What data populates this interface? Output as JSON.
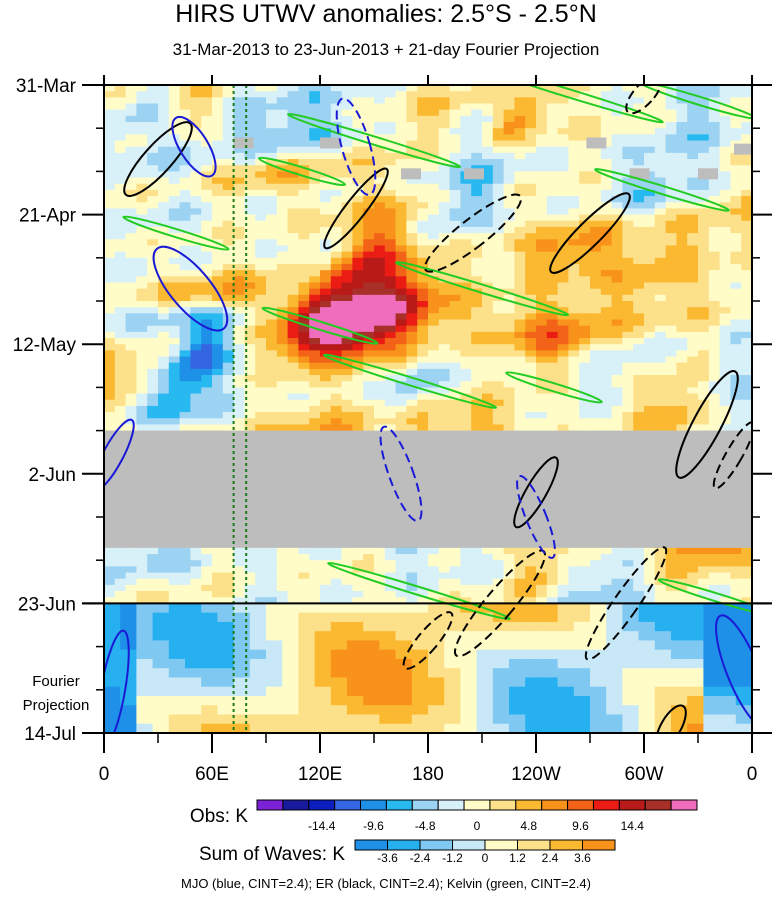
{
  "header": {
    "title": "HIRS UTWV anomalies: 2.5°S - 2.5°N",
    "subtitle": "31-Mar-2013 to 23-Jun-2013 + 21-day Fourier Projection"
  },
  "chart_data": {
    "type": "heatmap",
    "x_tick_labels": [
      "0",
      "60E",
      "120E",
      "180",
      "120W",
      "60W",
      "0"
    ],
    "x_tick_lon": [
      0,
      60,
      120,
      180,
      240,
      300,
      360
    ],
    "xlim": [
      0,
      360
    ],
    "y_tick_labels": [
      "31-Mar",
      "21-Apr",
      "12-May",
      "2-Jun",
      "23-Jun",
      "14-Jul"
    ],
    "y_tick_day": [
      0,
      21,
      42,
      63,
      84,
      105
    ],
    "ylim_days": [
      0,
      105
    ],
    "observation_end_day": 84,
    "projection_label": [
      "Fourier",
      "Projection"
    ],
    "missing_data_band_days": [
      56,
      75
    ],
    "reference_lines_lon": [
      72,
      79
    ],
    "reference_line_color": "#1a7a1a",
    "colorbar_obs": {
      "title": "Obs: K",
      "tick_labels": [
        "-14.4",
        "-9.6",
        "-4.8",
        "0",
        "4.8",
        "9.6",
        "14.4"
      ],
      "colors": [
        "#7b22d6",
        "#1a1a9e",
        "#0b1fc0",
        "#3366e0",
        "#1e90e8",
        "#27b9f0",
        "#9cd2f2",
        "#d8f0f8",
        "#fffcc8",
        "#fde18a",
        "#fbb932",
        "#f8921a",
        "#f26318",
        "#ea1c14",
        "#b81a18",
        "#a83028",
        "#f06cbc"
      ]
    },
    "colorbar_waves": {
      "title": "Sum of Waves: K",
      "tick_labels": [
        "-3.6",
        "-2.4",
        "-1.2",
        "0",
        "1.2",
        "2.4",
        "3.6"
      ],
      "colors": [
        "#1e90e8",
        "#27b0f0",
        "#7fc8f2",
        "#c8e8f8",
        "#fffcc8",
        "#fde18a",
        "#fbb932",
        "#f8921a"
      ]
    },
    "overlays": [
      {
        "name": "MJO",
        "color": "#1a1ad6"
      },
      {
        "name": "ER",
        "color": "#000000"
      },
      {
        "name": "Kelvin",
        "color": "#22cc22"
      }
    ],
    "missing_color": "#bdbdbd"
  },
  "footer": {
    "caption": "MJO (blue, CINT=2.4); ER (black, CINT=2.4); Kelvin (green, CINT=2.4)"
  }
}
